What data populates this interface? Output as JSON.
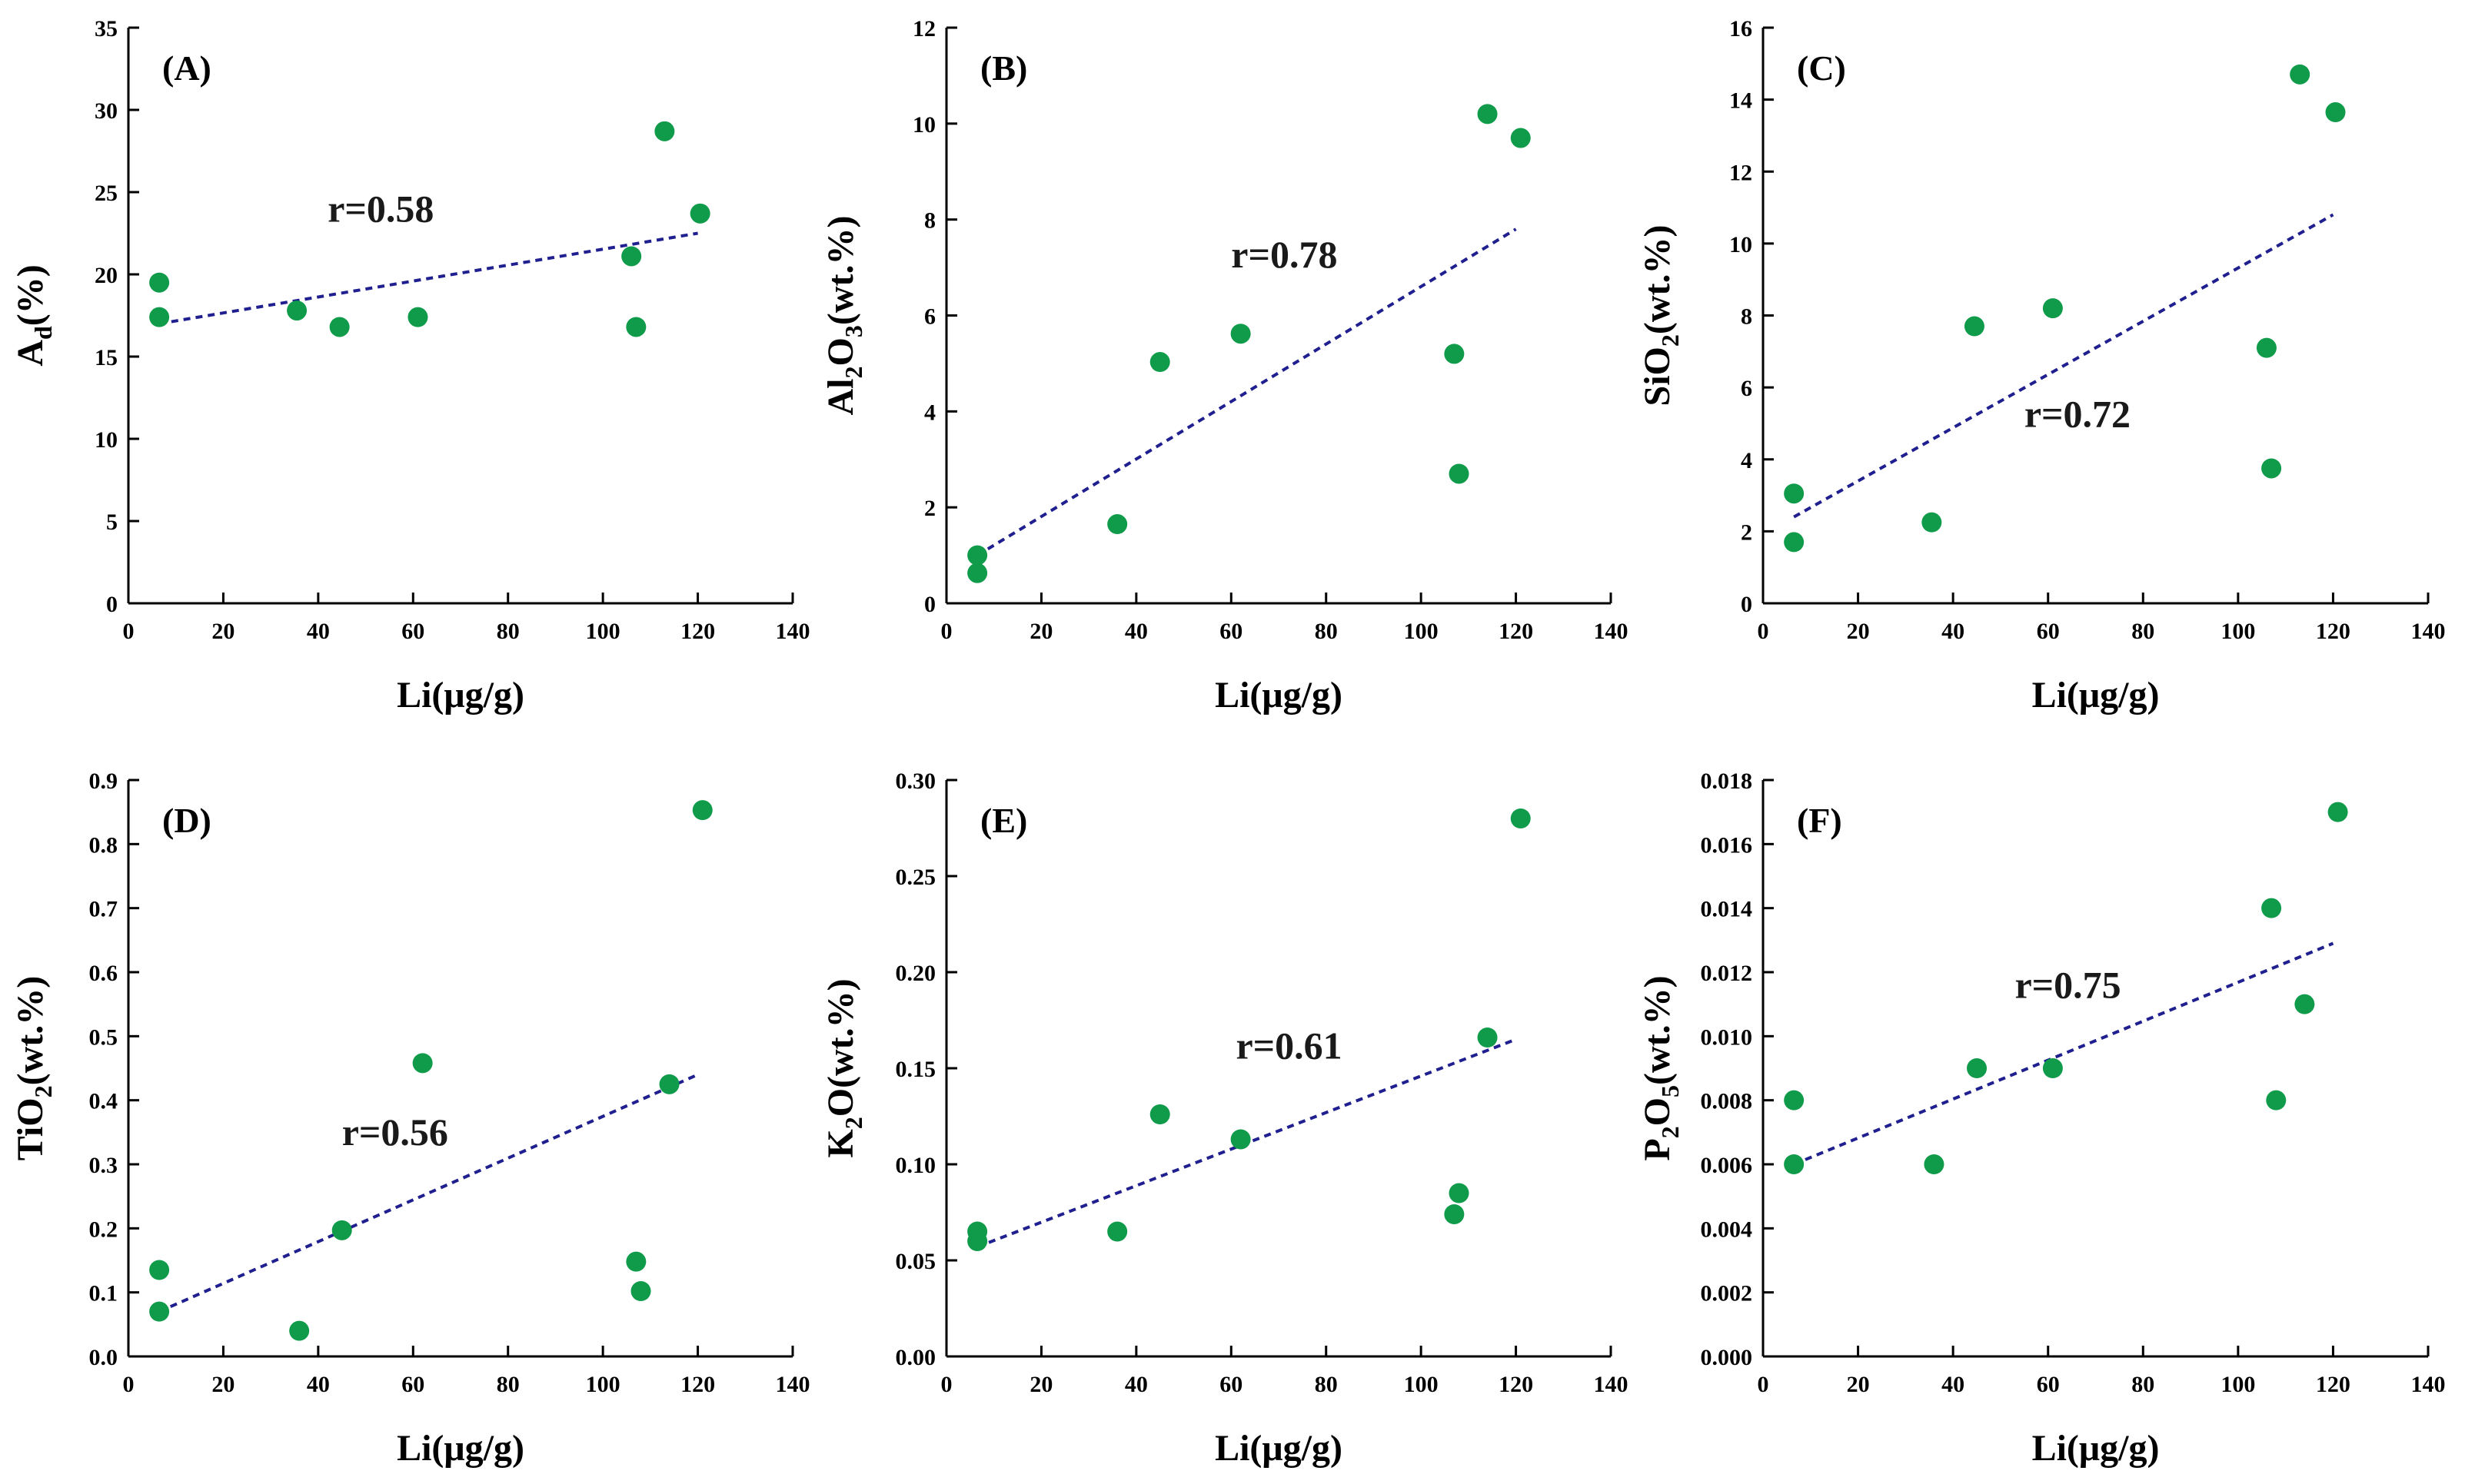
{
  "colors": {
    "point": "#0f9b4a",
    "trend": "#1f1f8f",
    "axis": "#000000"
  },
  "chart_data": [
    {
      "id": "A",
      "type": "scatter",
      "panel_label": "(A)",
      "xlabel": "Li(μg/g)",
      "ylabel": {
        "main": "A",
        "sub": "d",
        "rest": "(%)"
      },
      "xlim": [
        0,
        140
      ],
      "ylim": [
        0,
        35
      ],
      "xticks": [
        0,
        20,
        40,
        60,
        80,
        100,
        120,
        140
      ],
      "yticks": [
        0,
        5,
        10,
        15,
        20,
        25,
        30,
        35
      ],
      "ytick_labels": [
        "0",
        "5",
        "10",
        "15",
        "20",
        "25",
        "30",
        "35"
      ],
      "points": [
        [
          6.5,
          19.5
        ],
        [
          6.5,
          17.4
        ],
        [
          35.5,
          17.8
        ],
        [
          44.5,
          16.8
        ],
        [
          61,
          17.4
        ],
        [
          106,
          21.1
        ],
        [
          107,
          16.8
        ],
        [
          113,
          28.7
        ],
        [
          120.5,
          23.7
        ]
      ],
      "trend": [
        [
          6.5,
          17.0
        ],
        [
          120,
          22.5
        ]
      ],
      "r_text": "r=0.58",
      "r_pos": [
        42,
        23.2
      ]
    },
    {
      "id": "B",
      "type": "scatter",
      "panel_label": "(B)",
      "xlabel": "Li(μg/g)",
      "ylabel": {
        "parts": [
          [
            "Al",
            ""
          ],
          [
            "2",
            "sub"
          ],
          [
            "O",
            ""
          ],
          [
            "3",
            "sub"
          ],
          [
            "(wt.%)",
            ""
          ]
        ]
      },
      "xlim": [
        0,
        140
      ],
      "ylim": [
        0,
        12
      ],
      "xticks": [
        0,
        20,
        40,
        60,
        80,
        100,
        120,
        140
      ],
      "yticks": [
        0,
        2,
        4,
        6,
        8,
        10,
        12
      ],
      "ytick_labels": [
        "0",
        "2",
        "4",
        "6",
        "8",
        "10",
        "12"
      ],
      "points": [
        [
          6.5,
          1.0
        ],
        [
          6.5,
          0.63
        ],
        [
          36,
          1.65
        ],
        [
          45,
          5.03
        ],
        [
          62,
          5.62
        ],
        [
          107,
          5.2
        ],
        [
          108,
          2.7
        ],
        [
          114,
          10.2
        ],
        [
          121,
          9.7
        ]
      ],
      "trend": [
        [
          6.5,
          1.0
        ],
        [
          120,
          7.8
        ]
      ],
      "r_text": "r=0.78",
      "r_pos": [
        60,
        7.0
      ]
    },
    {
      "id": "C",
      "type": "scatter",
      "panel_label": "(C)",
      "xlabel": "Li(μg/g)",
      "ylabel": {
        "parts": [
          [
            "SiO",
            ""
          ],
          [
            "2",
            "sub"
          ],
          [
            "(wt.%)",
            ""
          ]
        ]
      },
      "xlim": [
        0,
        140
      ],
      "ylim": [
        0,
        16
      ],
      "xticks": [
        0,
        20,
        40,
        60,
        80,
        100,
        120,
        140
      ],
      "yticks": [
        0,
        2,
        4,
        6,
        8,
        10,
        12,
        14,
        16
      ],
      "ytick_labels": [
        "0",
        "2",
        "4",
        "6",
        "8",
        "10",
        "12",
        "14",
        "16"
      ],
      "points": [
        [
          6.5,
          3.05
        ],
        [
          6.5,
          1.7
        ],
        [
          35.5,
          2.25
        ],
        [
          44.5,
          7.7
        ],
        [
          61,
          8.2
        ],
        [
          106,
          7.1
        ],
        [
          107,
          3.75
        ],
        [
          113,
          14.7
        ],
        [
          120.5,
          13.65
        ]
      ],
      "trend": [
        [
          6.5,
          2.4
        ],
        [
          120,
          10.8
        ]
      ],
      "r_text": "r=0.72",
      "r_pos": [
        55,
        4.9
      ]
    },
    {
      "id": "D",
      "type": "scatter",
      "panel_label": "(D)",
      "xlabel": "Li(μg/g)",
      "ylabel": {
        "parts": [
          [
            "TiO",
            ""
          ],
          [
            "2",
            "sub"
          ],
          [
            "(wt.%)",
            ""
          ]
        ]
      },
      "xlim": [
        0,
        140
      ],
      "ylim": [
        0,
        0.9
      ],
      "xticks": [
        0,
        20,
        40,
        60,
        80,
        100,
        120,
        140
      ],
      "yticks": [
        0,
        0.1,
        0.2,
        0.3,
        0.4,
        0.5,
        0.6,
        0.7,
        0.8,
        0.9
      ],
      "ytick_labels": [
        "0.0",
        "0.1",
        "0.2",
        "0.3",
        "0.4",
        "0.5",
        "0.6",
        "0.7",
        "0.8",
        "0.9"
      ],
      "points": [
        [
          6.5,
          0.135
        ],
        [
          6.5,
          0.07
        ],
        [
          36,
          0.04
        ],
        [
          45,
          0.197
        ],
        [
          62,
          0.458
        ],
        [
          107,
          0.148
        ],
        [
          108,
          0.102
        ],
        [
          114,
          0.425
        ],
        [
          121,
          0.853
        ]
      ],
      "trend": [
        [
          6.5,
          0.07
        ],
        [
          120,
          0.44
        ]
      ],
      "r_text": "r=0.56",
      "r_pos": [
        45,
        0.33
      ]
    },
    {
      "id": "E",
      "type": "scatter",
      "panel_label": "(E)",
      "xlabel": "Li(μg/g)",
      "ylabel": {
        "parts": [
          [
            "K",
            ""
          ],
          [
            "2",
            "sub"
          ],
          [
            "O(wt.%)",
            ""
          ]
        ]
      },
      "xlim": [
        0,
        140
      ],
      "ylim": [
        0,
        0.3
      ],
      "xticks": [
        0,
        20,
        40,
        60,
        80,
        100,
        120,
        140
      ],
      "yticks": [
        0,
        0.05,
        0.1,
        0.15,
        0.2,
        0.25,
        0.3
      ],
      "ytick_labels": [
        "0.00",
        "0.05",
        "0.10",
        "0.15",
        "0.20",
        "0.25",
        "0.30"
      ],
      "points": [
        [
          6.5,
          0.065
        ],
        [
          6.5,
          0.06
        ],
        [
          36,
          0.065
        ],
        [
          45,
          0.126
        ],
        [
          62,
          0.113
        ],
        [
          107,
          0.074
        ],
        [
          108,
          0.085
        ],
        [
          114,
          0.166
        ],
        [
          121,
          0.28
        ]
      ],
      "trend": [
        [
          6.5,
          0.057
        ],
        [
          120,
          0.165
        ]
      ],
      "r_text": "r=0.61",
      "r_pos": [
        61,
        0.155
      ]
    },
    {
      "id": "F",
      "type": "scatter",
      "panel_label": "(F)",
      "xlabel": "Li(μg/g)",
      "ylabel": {
        "parts": [
          [
            "P",
            ""
          ],
          [
            "2",
            "sub"
          ],
          [
            "O",
            ""
          ],
          [
            "5",
            "sub"
          ],
          [
            "(wt.%)",
            ""
          ]
        ]
      },
      "xlim": [
        0,
        140
      ],
      "ylim": [
        0,
        0.018
      ],
      "xticks": [
        0,
        20,
        40,
        60,
        80,
        100,
        120,
        140
      ],
      "yticks": [
        0,
        0.002,
        0.004,
        0.006,
        0.008,
        0.01,
        0.012,
        0.014,
        0.016,
        0.018
      ],
      "ytick_labels": [
        "0.000",
        "0.002",
        "0.004",
        "0.006",
        "0.008",
        "0.010",
        "0.012",
        "0.014",
        "0.016",
        "0.018"
      ],
      "points": [
        [
          6.5,
          0.008
        ],
        [
          6.5,
          0.006
        ],
        [
          36,
          0.006
        ],
        [
          45,
          0.009
        ],
        [
          61,
          0.009
        ],
        [
          107,
          0.014
        ],
        [
          108,
          0.008
        ],
        [
          114,
          0.011
        ],
        [
          121,
          0.017
        ]
      ],
      "trend": [
        [
          6.5,
          0.006
        ],
        [
          120,
          0.0129
        ]
      ],
      "r_text": "r=0.75",
      "r_pos": [
        53,
        0.0112
      ]
    }
  ]
}
